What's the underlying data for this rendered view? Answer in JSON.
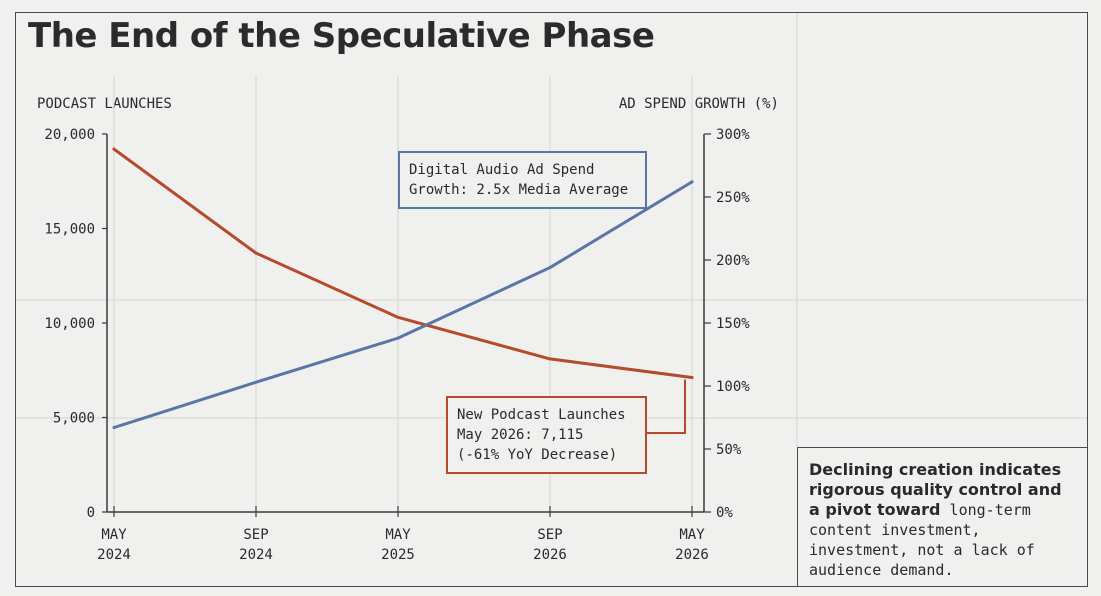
{
  "title": "The End of the Speculative Phase",
  "chart_data": {
    "type": "line",
    "title": "The End of the Speculative Phase",
    "categories": [
      "MAY 2024",
      "SEP 2024",
      "MAY 2025",
      "SEP 2026",
      "MAY 2026"
    ],
    "x_ticks": [
      {
        "month": "MAY",
        "year": "2024"
      },
      {
        "month": "SEP",
        "year": "2024"
      },
      {
        "month": "MAY",
        "year": "2025"
      },
      {
        "month": "SEP",
        "year": "2026"
      },
      {
        "month": "MAY",
        "year": "2026"
      }
    ],
    "y_left": {
      "label": "PODCAST LAUNCHES",
      "range": [
        0,
        20000
      ],
      "ticks": [
        "0",
        "5,000",
        "10,000",
        "15,000",
        "20,000"
      ],
      "tick_values": [
        0,
        5000,
        10000,
        15000,
        20000
      ]
    },
    "y_right": {
      "label": "AD SPEND GROWTH (%)",
      "range": [
        0,
        300
      ],
      "ticks": [
        "0%",
        "50%",
        "100%",
        "150%",
        "200%",
        "250%",
        "300%"
      ],
      "tick_values": [
        0,
        50,
        100,
        150,
        200,
        250,
        300
      ]
    },
    "series": [
      {
        "axis": "left",
        "color": "#b64a2d",
        "values": [
          19200,
          13700,
          10300,
          8100,
          7115
        ]
      },
      {
        "axis": "right",
        "color": "#5b75a6",
        "values": [
          67,
          103,
          138,
          194,
          262
        ]
      }
    ],
    "grid": true
  },
  "annotations": {
    "blue": "Digital Audio Ad Spend\nGrowth: 2.5x Media Average",
    "red": "New Podcast Launches\nMay 2026: 7,115\n(-61% YoY Decrease)"
  },
  "note": {
    "bold": "Declining creation indicates rigorous quality control and a pivot toward",
    "rest": " long-term content investment, investment, not a lack of audience demand."
  }
}
